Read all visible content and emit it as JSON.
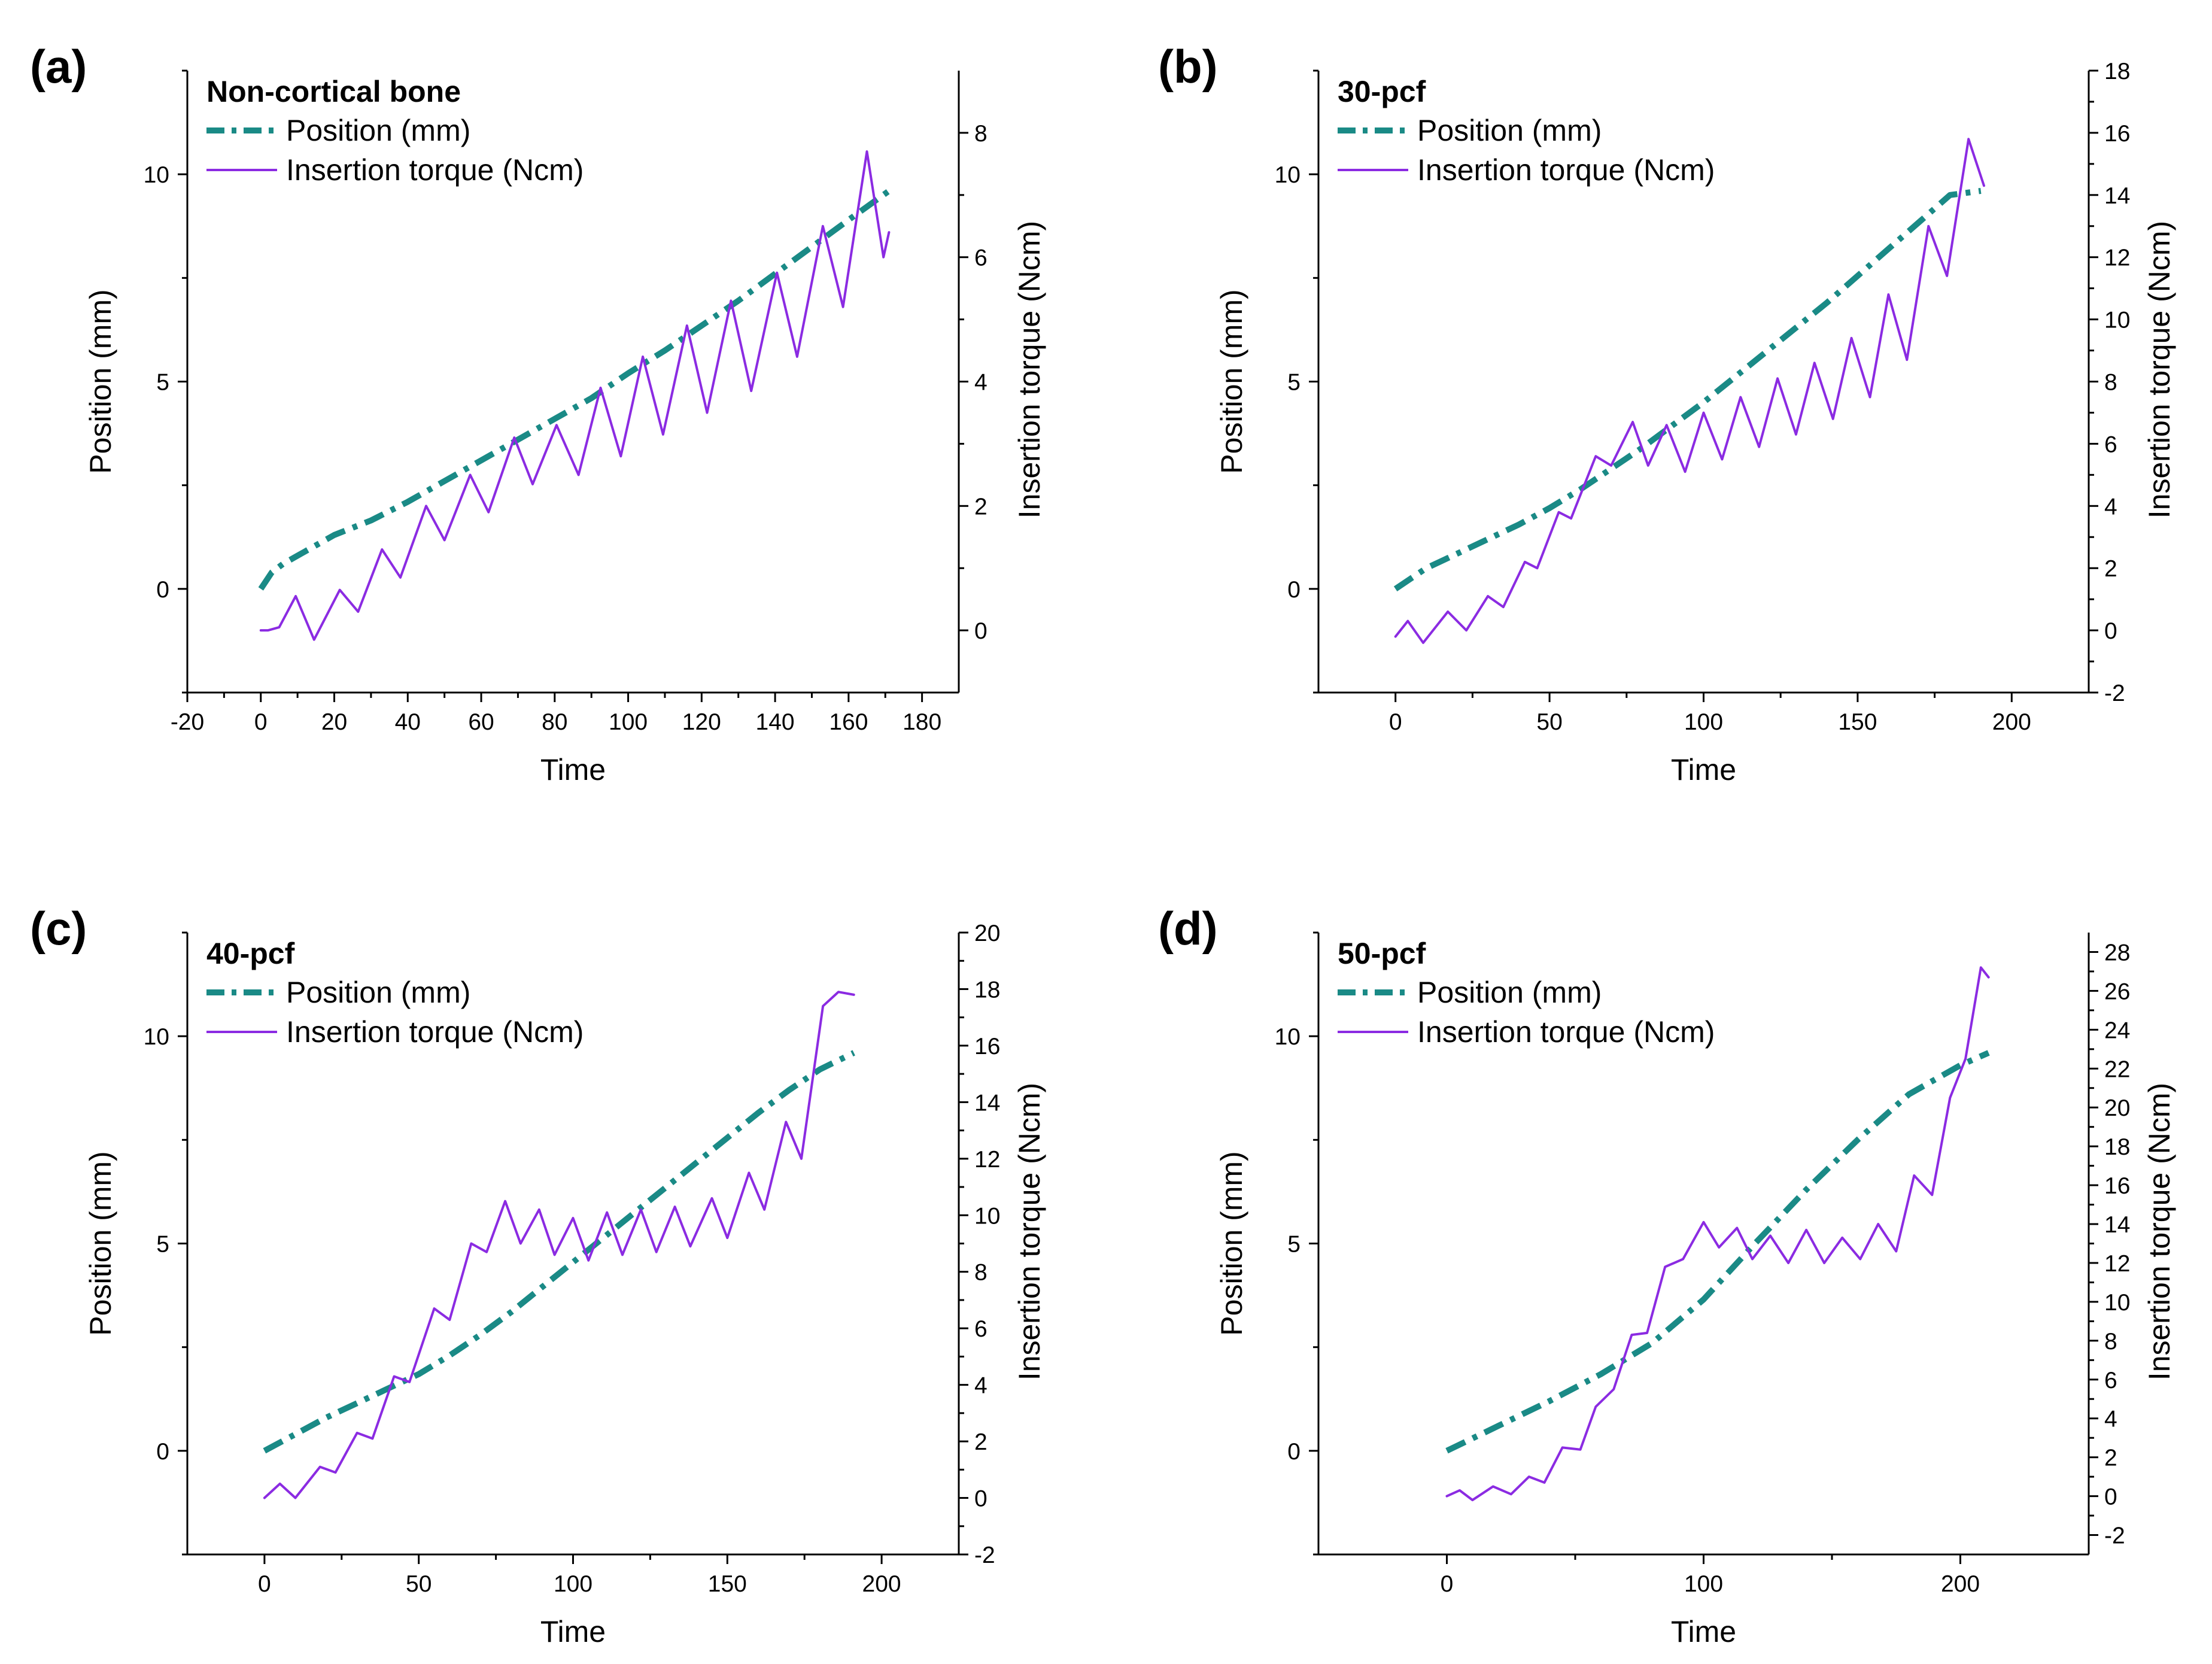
{
  "figure": {
    "colors": {
      "position": "#1a8a86",
      "torque": "#8b2be2",
      "axis": "#000000"
    }
  },
  "chart_data": [
    {
      "type": "line",
      "panel_label": "(a)",
      "title": "Non-cortical bone",
      "xlabel": "Time",
      "ylabel": "Position (mm)",
      "y2label": "Insertion torque (Ncm)",
      "xlim": [
        -20,
        190
      ],
      "xticks": [
        -20,
        0,
        20,
        40,
        60,
        80,
        100,
        120,
        140,
        160,
        180
      ],
      "ylim": [
        -2.5,
        12.5
      ],
      "yticks": [
        0,
        5,
        10
      ],
      "y2lim": [
        -1,
        9
      ],
      "y2ticks": [
        0,
        2,
        4,
        6,
        8
      ],
      "legend": {
        "position": "top-left",
        "entries": [
          "Position (mm)",
          "Insertion torque (Ncm)"
        ]
      },
      "series": [
        {
          "name": "Position (mm)",
          "axis": "left",
          "style": "dash-dot",
          "x": [
            0,
            3,
            6,
            10,
            15,
            20,
            30,
            40,
            50,
            60,
            70,
            80,
            90,
            100,
            110,
            120,
            130,
            140,
            150,
            160,
            171
          ],
          "y": [
            0,
            0.4,
            0.6,
            0.8,
            1.05,
            1.3,
            1.65,
            2.1,
            2.6,
            3.1,
            3.6,
            4.1,
            4.6,
            5.2,
            5.75,
            6.35,
            6.95,
            7.6,
            8.25,
            8.9,
            9.6
          ]
        },
        {
          "name": "Insertion torque (Ncm)",
          "axis": "right",
          "style": "solid",
          "x": [
            0,
            2,
            5,
            9.5,
            14.5,
            21.5,
            26.5,
            33,
            38,
            45,
            50,
            57,
            62,
            69,
            74,
            80.5,
            86.5,
            92.5,
            98,
            104,
            109.5,
            116,
            121.5,
            128,
            133.5,
            140.5,
            146,
            153,
            158.5,
            165,
            169.5,
            171
          ],
          "y": [
            0,
            0,
            0.05,
            0.55,
            -0.15,
            0.65,
            0.3,
            1.3,
            0.85,
            2.0,
            1.45,
            2.5,
            1.9,
            3.1,
            2.35,
            3.3,
            2.5,
            3.9,
            2.8,
            4.4,
            3.15,
            4.9,
            3.5,
            5.3,
            3.85,
            5.75,
            4.4,
            6.5,
            5.2,
            7.7,
            6.0,
            6.4
          ]
        }
      ]
    },
    {
      "type": "line",
      "panel_label": "(b)",
      "title": "30-pcf",
      "xlabel": "Time",
      "ylabel": "Position (mm)",
      "y2label": "Insertion torque (Ncm)",
      "xlim": [
        -25,
        225
      ],
      "xticks": [
        0,
        50,
        100,
        150,
        200
      ],
      "ylim": [
        -2.5,
        12.5
      ],
      "yticks": [
        0,
        5,
        10
      ],
      "y2lim": [
        -2,
        18
      ],
      "y2ticks": [
        -2,
        0,
        2,
        4,
        6,
        8,
        10,
        12,
        14,
        16,
        18
      ],
      "legend": {
        "position": "top-left",
        "entries": [
          "Position (mm)",
          "Insertion torque (Ncm)"
        ]
      },
      "series": [
        {
          "name": "Position (mm)",
          "axis": "left",
          "style": "dash-dot",
          "x": [
            0,
            5,
            10,
            20,
            30,
            40,
            50,
            60,
            70,
            80,
            90,
            100,
            110,
            120,
            130,
            140,
            150,
            160,
            170,
            180,
            190
          ],
          "y": [
            0,
            0.25,
            0.5,
            0.85,
            1.2,
            1.55,
            1.95,
            2.4,
            2.9,
            3.4,
            3.95,
            4.5,
            5.1,
            5.7,
            6.3,
            6.9,
            7.55,
            8.2,
            8.85,
            9.5,
            9.6
          ]
        },
        {
          "name": "Insertion torque (Ncm)",
          "axis": "right",
          "style": "solid",
          "x": [
            0,
            4,
            9,
            17,
            23,
            30,
            35,
            42,
            46,
            53,
            57,
            65,
            70,
            77,
            82,
            88,
            94,
            100,
            106,
            112,
            118,
            124,
            130,
            136,
            142,
            148,
            154,
            160,
            166,
            173,
            179,
            186,
            191
          ],
          "y": [
            -0.2,
            0.3,
            -0.4,
            0.6,
            0,
            1.1,
            0.75,
            2.2,
            2.0,
            3.8,
            3.6,
            5.6,
            5.3,
            6.7,
            5.3,
            6.6,
            5.1,
            7.0,
            5.5,
            7.5,
            5.9,
            8.1,
            6.3,
            8.6,
            6.8,
            9.4,
            7.5,
            10.8,
            8.7,
            13.0,
            11.4,
            15.8,
            14.3
          ]
        }
      ]
    },
    {
      "type": "line",
      "panel_label": "(c)",
      "title": "40-pcf",
      "xlabel": "Time",
      "ylabel": "Position (mm)",
      "y2label": "Insertion torque (Ncm)",
      "xlim": [
        -25,
        225
      ],
      "xticks": [
        0,
        50,
        100,
        150,
        200
      ],
      "ylim": [
        -2.5,
        12.5
      ],
      "yticks": [
        0,
        5,
        10
      ],
      "y2lim": [
        -2,
        20
      ],
      "y2ticks": [
        -2,
        0,
        2,
        4,
        6,
        8,
        10,
        12,
        14,
        16,
        18,
        20
      ],
      "legend": {
        "position": "top-left",
        "entries": [
          "Position (mm)",
          "Insertion torque (Ncm)"
        ]
      },
      "series": [
        {
          "name": "Position (mm)",
          "axis": "left",
          "style": "dash-dot",
          "x": [
            0,
            10,
            20,
            30,
            40,
            50,
            60,
            70,
            80,
            90,
            100,
            110,
            120,
            130,
            140,
            150,
            160,
            170,
            180,
            191
          ],
          "y": [
            0,
            0.4,
            0.8,
            1.15,
            1.5,
            1.85,
            2.3,
            2.8,
            3.35,
            3.95,
            4.55,
            5.15,
            5.75,
            6.35,
            6.95,
            7.55,
            8.15,
            8.7,
            9.2,
            9.6
          ]
        },
        {
          "name": "Insertion torque (Ncm)",
          "axis": "right",
          "style": "solid",
          "x": [
            0,
            5,
            10,
            18,
            23,
            30,
            35,
            42,
            47,
            55,
            60,
            67,
            72,
            78,
            83,
            89,
            94,
            100,
            105,
            111,
            116,
            122,
            127,
            133,
            138,
            145,
            150,
            157,
            162,
            169,
            174,
            181,
            186,
            191
          ],
          "y": [
            0,
            0.5,
            0,
            1.1,
            0.9,
            2.3,
            2.1,
            4.3,
            4.1,
            6.7,
            6.3,
            9.0,
            8.7,
            10.5,
            9.0,
            10.2,
            8.6,
            9.9,
            8.4,
            10.1,
            8.6,
            10.2,
            8.7,
            10.3,
            8.9,
            10.6,
            9.2,
            11.5,
            10.2,
            13.3,
            12.0,
            17.4,
            17.9,
            17.8
          ]
        }
      ]
    },
    {
      "type": "line",
      "panel_label": "(d)",
      "title": "50-pcf",
      "xlabel": "Time",
      "ylabel": "Position (mm)",
      "y2label": "Insertion torque (Ncm)",
      "xlim": [
        -50,
        250
      ],
      "xticks": [
        0,
        100,
        200
      ],
      "ylim": [
        -2.5,
        12.5
      ],
      "yticks": [
        0,
        5,
        10
      ],
      "y2lim": [
        -3,
        29
      ],
      "y2ticks": [
        -2,
        0,
        2,
        4,
        6,
        8,
        10,
        12,
        14,
        16,
        18,
        20,
        22,
        24,
        26,
        28
      ],
      "legend": {
        "position": "top-left",
        "entries": [
          "Position (mm)",
          "Insertion torque (Ncm)"
        ]
      },
      "series": [
        {
          "name": "Position (mm)",
          "axis": "left",
          "style": "dash-dot",
          "x": [
            0,
            20,
            40,
            60,
            80,
            100,
            120,
            140,
            160,
            180,
            200,
            211
          ],
          "y": [
            0,
            0.6,
            1.2,
            1.85,
            2.6,
            3.65,
            5.0,
            6.3,
            7.5,
            8.6,
            9.3,
            9.6
          ]
        },
        {
          "name": "Insertion torque (Ncm)",
          "axis": "right",
          "style": "solid",
          "x": [
            0,
            5,
            10,
            18,
            25,
            32,
            38,
            45,
            52,
            58,
            65,
            72,
            78,
            85,
            92,
            100,
            106,
            113,
            119,
            126,
            133,
            140,
            147,
            154,
            161,
            168,
            175,
            182,
            189,
            196,
            202,
            208,
            211
          ],
          "y": [
            0,
            0.3,
            -0.2,
            0.5,
            0.1,
            1.0,
            0.7,
            2.5,
            2.4,
            4.6,
            5.5,
            8.3,
            8.4,
            11.8,
            12.2,
            14.1,
            12.8,
            13.8,
            12.2,
            13.4,
            12.0,
            13.7,
            12.0,
            13.3,
            12.2,
            14.0,
            12.6,
            16.5,
            15.5,
            20.5,
            22.5,
            27.2,
            26.7
          ]
        }
      ]
    }
  ]
}
